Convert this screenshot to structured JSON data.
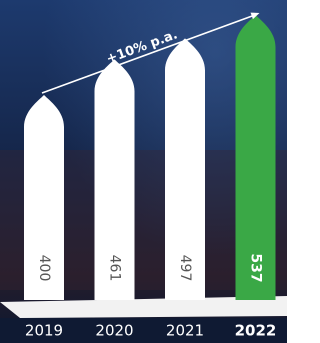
{
  "chart_data": {
    "type": "bar",
    "categories": [
      "2019",
      "2020",
      "2021",
      "2022"
    ],
    "values": [
      400,
      461,
      497,
      537
    ],
    "colors": [
      "#ffffff",
      "#ffffff",
      "#ffffff",
      "#3aa846"
    ],
    "highlight_index": 3,
    "annotation": "+10% p.a."
  }
}
